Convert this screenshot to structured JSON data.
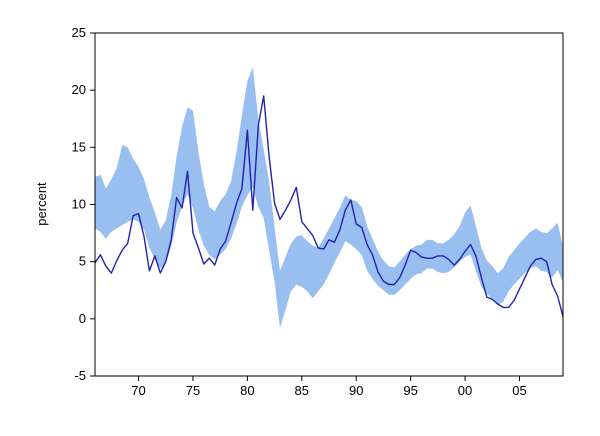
{
  "chart_data": {
    "type": "line",
    "title": "",
    "xlabel": "",
    "ylabel": "percent",
    "grid": false,
    "legend": "none",
    "xlim": [
      1966,
      2009
    ],
    "ylim": [
      -5,
      25
    ],
    "yticks": [
      -5,
      0,
      5,
      10,
      15,
      20,
      25
    ],
    "ytick_labels": [
      "-5",
      "0",
      "5",
      "10",
      "15",
      "20",
      "25"
    ],
    "xticks": [
      1970,
      1975,
      1980,
      1985,
      1990,
      1995,
      2000,
      2005
    ],
    "xtick_labels": [
      "70",
      "75",
      "80",
      "85",
      "90",
      "95",
      "00",
      "05"
    ],
    "x": [
      1966,
      1966.5,
      1967,
      1967.5,
      1968,
      1968.5,
      1969,
      1969.5,
      1970,
      1970.5,
      1971,
      1971.5,
      1972,
      1972.5,
      1973,
      1973.5,
      1974,
      1974.5,
      1975,
      1975.5,
      1976,
      1976.5,
      1977,
      1977.5,
      1978,
      1978.5,
      1979,
      1979.5,
      1980,
      1980.5,
      1981,
      1981.5,
      1982,
      1982.5,
      1983,
      1983.5,
      1984,
      1984.5,
      1985,
      1985.5,
      1986,
      1986.5,
      1987,
      1987.5,
      1988,
      1988.5,
      1989,
      1989.5,
      1990,
      1990.5,
      1991,
      1991.5,
      1992,
      1992.5,
      1993,
      1993.5,
      1994,
      1994.5,
      1995,
      1995.5,
      1996,
      1996.5,
      1997,
      1997.5,
      1998,
      1998.5,
      1999,
      1999.5,
      2000,
      2000.5,
      2001,
      2001.5,
      2002,
      2002.5,
      2003,
      2003.5,
      2004,
      2004.5,
      2005,
      2005.5,
      2006,
      2006.5,
      2007,
      2007.5,
      2008,
      2008.5,
      2009
    ],
    "series": [
      {
        "name": "interval-band",
        "kind": "band",
        "color": "#99BEF0",
        "low": [
          7.9,
          7.6,
          7.0,
          7.6,
          7.9,
          8.2,
          8.5,
          8.7,
          8.5,
          7.8,
          6.2,
          5.2,
          4.4,
          4.8,
          6.3,
          8.4,
          9.8,
          10.9,
          9.7,
          7.8,
          6.4,
          5.6,
          5.2,
          5.6,
          6.1,
          7.0,
          8.3,
          9.8,
          10.8,
          11.5,
          9.8,
          8.8,
          6.0,
          3.2,
          -0.8,
          0.8,
          2.4,
          3.0,
          2.8,
          2.4,
          1.8,
          2.4,
          3.0,
          3.9,
          4.9,
          5.8,
          6.8,
          6.5,
          6.1,
          5.6,
          4.2,
          3.5,
          2.9,
          2.5,
          2.1,
          2.1,
          2.5,
          3.0,
          3.5,
          3.9,
          4.0,
          4.4,
          4.4,
          4.1,
          4.0,
          4.1,
          4.5,
          5.0,
          5.4,
          5.6,
          4.2,
          2.8,
          2.2,
          1.7,
          1.2,
          1.5,
          2.4,
          3.0,
          3.5,
          4.0,
          4.4,
          4.6,
          4.2,
          4.1,
          3.6,
          4.3,
          3.2
        ],
        "high": [
          12.4,
          12.6,
          11.4,
          12.2,
          13.2,
          15.2,
          15.0,
          14.0,
          13.3,
          12.2,
          10.6,
          9.3,
          7.8,
          8.6,
          10.8,
          14.2,
          16.8,
          18.5,
          18.2,
          14.6,
          11.8,
          9.8,
          9.4,
          10.3,
          10.9,
          12.0,
          14.6,
          17.8,
          20.8,
          22.0,
          17.5,
          14.8,
          12.0,
          8.0,
          4.2,
          5.4,
          6.6,
          7.2,
          7.3,
          6.8,
          6.4,
          6.2,
          7.0,
          7.9,
          8.8,
          9.7,
          10.8,
          10.4,
          10.3,
          9.8,
          8.1,
          7.0,
          5.9,
          5.1,
          4.6,
          4.5,
          5.0,
          5.6,
          6.1,
          6.4,
          6.5,
          6.9,
          6.9,
          6.6,
          6.6,
          6.9,
          7.4,
          8.1,
          9.3,
          9.9,
          8.1,
          6.2,
          5.1,
          4.6,
          4.0,
          4.4,
          5.4,
          6.0,
          6.6,
          7.1,
          7.6,
          7.9,
          7.6,
          7.5,
          7.9,
          8.4,
          6.3
        ]
      },
      {
        "name": "line-series",
        "kind": "line",
        "color": "#2222AA",
        "values": [
          4.9,
          5.6,
          4.6,
          4.0,
          5.1,
          6.0,
          6.6,
          9.0,
          9.2,
          7.2,
          4.2,
          5.5,
          4.0,
          5.0,
          6.9,
          10.6,
          9.7,
          12.9,
          7.5,
          6.2,
          4.8,
          5.3,
          4.7,
          6.1,
          6.8,
          8.4,
          10.1,
          11.4,
          16.5,
          9.5,
          16.9,
          19.5,
          14.2,
          10.1,
          8.7,
          9.5,
          10.4,
          11.5,
          8.5,
          7.9,
          7.3,
          6.2,
          6.1,
          6.9,
          6.7,
          7.8,
          9.5,
          10.4,
          8.3,
          8.0,
          6.5,
          5.6,
          4.1,
          3.3,
          3.0,
          3.0,
          3.6,
          4.7,
          6.0,
          5.8,
          5.4,
          5.3,
          5.3,
          5.5,
          5.5,
          5.2,
          4.7,
          5.2,
          5.9,
          6.5,
          5.5,
          3.6,
          1.9,
          1.7,
          1.3,
          1.0,
          1.0,
          1.6,
          2.6,
          3.6,
          4.6,
          5.2,
          5.3,
          5.0,
          3.0,
          2.0,
          0.2
        ]
      }
    ],
    "frame_color": "#000000"
  }
}
